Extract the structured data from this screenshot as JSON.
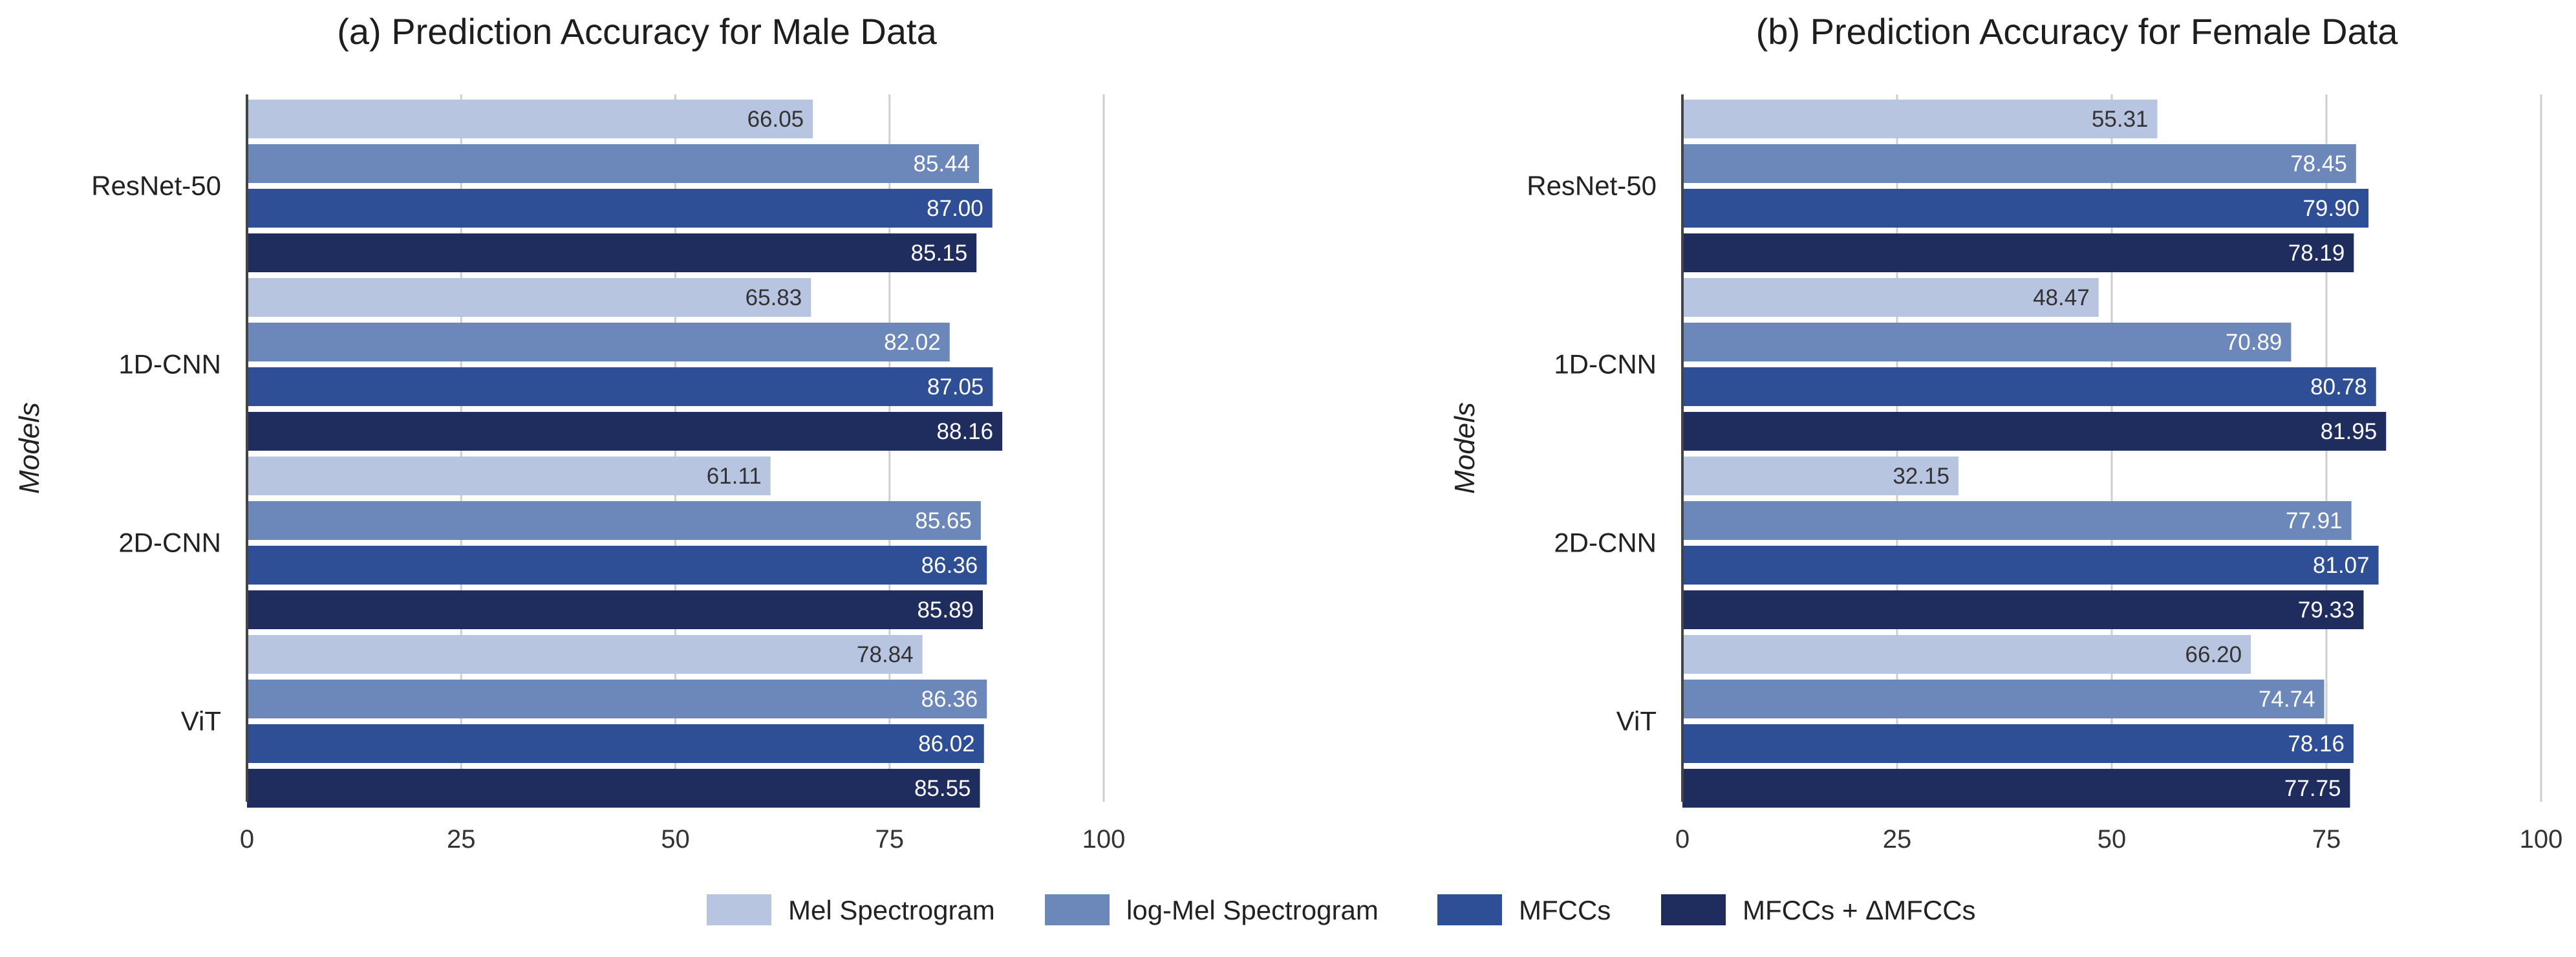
{
  "colors": {
    "series": [
      "#b8c5e0",
      "#6c87ba",
      "#2e4f96",
      "#1e2d5e"
    ],
    "label_dark": "#333333",
    "label_light": "#ffffff"
  },
  "legend": {
    "items": [
      "Mel Spectrogram",
      "log-Mel Spectrogram",
      "MFCCs",
      "MFCCs + ΔMFCCs"
    ]
  },
  "chart_data": [
    {
      "type": "bar",
      "orientation": "horizontal",
      "title": "(a) Prediction Accuracy for Male Data",
      "xlabel": "",
      "ylabel": "Models",
      "xlim": [
        0,
        100
      ],
      "xticks": [
        0,
        25,
        50,
        75,
        100
      ],
      "grid": true,
      "categories": [
        "ResNet-50",
        "1D-CNN",
        "2D-CNN",
        "ViT"
      ],
      "series": [
        {
          "name": "Mel Spectrogram",
          "values": [
            66.05,
            65.83,
            61.11,
            78.84
          ]
        },
        {
          "name": "log-Mel Spectrogram",
          "values": [
            85.44,
            82.02,
            85.65,
            86.36
          ]
        },
        {
          "name": "MFCCs",
          "values": [
            87.0,
            87.05,
            86.36,
            86.02
          ]
        },
        {
          "name": "MFCCs + ΔMFCCs",
          "values": [
            85.15,
            88.16,
            85.89,
            85.55
          ]
        }
      ],
      "labels": [
        [
          "66.05",
          "65.83",
          "61.11",
          "78.84"
        ],
        [
          "85.44",
          "82.02",
          "85.65",
          "86.36"
        ],
        [
          "87.00",
          "87.05",
          "86.36",
          "86.02"
        ],
        [
          "85.15",
          "88.16",
          "85.89",
          "85.55"
        ]
      ]
    },
    {
      "type": "bar",
      "orientation": "horizontal",
      "title": "(b) Prediction Accuracy for Female Data",
      "xlabel": "",
      "ylabel": "Models",
      "xlim": [
        0,
        100
      ],
      "xticks": [
        0,
        25,
        50,
        75,
        100
      ],
      "grid": true,
      "categories": [
        "ResNet-50",
        "1D-CNN",
        "2D-CNN",
        "ViT"
      ],
      "series": [
        {
          "name": "Mel Spectrogram",
          "values": [
            55.31,
            48.47,
            32.15,
            66.2
          ]
        },
        {
          "name": "log-Mel Spectrogram",
          "values": [
            78.45,
            70.89,
            77.91,
            74.74
          ]
        },
        {
          "name": "MFCCs",
          "values": [
            79.9,
            80.78,
            81.07,
            78.16
          ]
        },
        {
          "name": "MFCCs + ΔMFCCs",
          "values": [
            78.19,
            81.95,
            79.33,
            77.75
          ]
        }
      ],
      "labels": [
        [
          "55.31",
          "48.47",
          "32.15",
          "66.20"
        ],
        [
          "78.45",
          "70.89",
          "77.91",
          "74.74"
        ],
        [
          "79.90",
          "80.78",
          "81.07",
          "78.16"
        ],
        [
          "78.19",
          "81.95",
          "79.33",
          "77.75"
        ]
      ]
    }
  ]
}
